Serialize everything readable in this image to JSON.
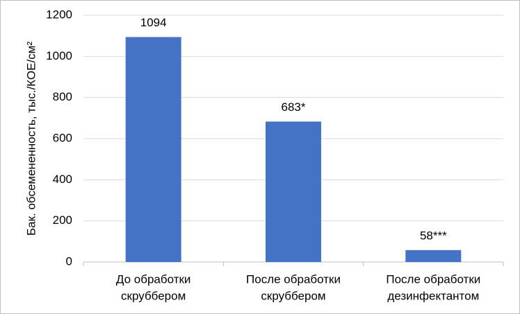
{
  "chart_data": {
    "type": "bar",
    "y_label": "Бак. обсемененность, тыс./КОЕ/см²",
    "categories": [
      [
        "До обработки",
        "скруббером"
      ],
      [
        "После обработки",
        "скруббером"
      ],
      [
        "После обработки",
        "дезинфектантом"
      ]
    ],
    "values": [
      1094,
      683,
      58
    ],
    "value_labels": [
      "1094",
      "683*",
      "58***"
    ],
    "color": "#4472c4",
    "ylim": [
      0,
      1200
    ],
    "yticks": [
      0,
      200,
      400,
      600,
      800,
      1000,
      1200
    ],
    "grid": true
  }
}
